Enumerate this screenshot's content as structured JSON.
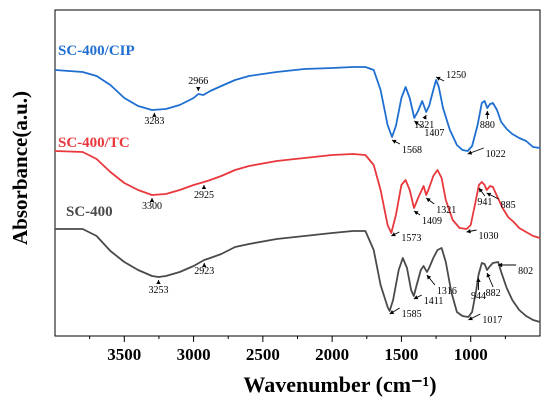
{
  "chart_data": {
    "type": "line",
    "xlabel": "Wavenumber (cm⁻¹)",
    "ylabel": "Absorbance(a.u.)",
    "xlim": [
      4000,
      500
    ],
    "x_reversed": true,
    "x_ticks": [
      3500,
      3000,
      2500,
      2000,
      1500,
      1000
    ],
    "y_ticks": "none",
    "grid": false,
    "series": [
      {
        "name": "SC-400/CIP",
        "color": "#1f6fd1",
        "points": [
          [
            4000,
            70
          ],
          [
            3800,
            72
          ],
          [
            3700,
            76
          ],
          [
            3600,
            85
          ],
          [
            3500,
            98
          ],
          [
            3400,
            106
          ],
          [
            3300,
            110
          ],
          [
            3200,
            109
          ],
          [
            3100,
            105
          ],
          [
            3000,
            98
          ],
          [
            2966,
            94
          ],
          [
            2930,
            95
          ],
          [
            2880,
            91
          ],
          [
            2800,
            86
          ],
          [
            2700,
            80
          ],
          [
            2600,
            76
          ],
          [
            2400,
            72
          ],
          [
            2200,
            69
          ],
          [
            2000,
            68
          ],
          [
            1850,
            67
          ],
          [
            1760,
            67
          ],
          [
            1700,
            70
          ],
          [
            1650,
            90
          ],
          [
            1600,
            125
          ],
          [
            1568,
            137
          ],
          [
            1540,
            126
          ],
          [
            1500,
            98
          ],
          [
            1470,
            87
          ],
          [
            1440,
            98
          ],
          [
            1407,
            118
          ],
          [
            1380,
            111
          ],
          [
            1350,
            101
          ],
          [
            1321,
            112
          ],
          [
            1300,
            106
          ],
          [
            1270,
            90
          ],
          [
            1250,
            80
          ],
          [
            1230,
            87
          ],
          [
            1200,
            108
          ],
          [
            1150,
            130
          ],
          [
            1100,
            145
          ],
          [
            1060,
            150
          ],
          [
            1022,
            151
          ],
          [
            990,
            146
          ],
          [
            950,
            125
          ],
          [
            920,
            103
          ],
          [
            900,
            101
          ],
          [
            880,
            108
          ],
          [
            860,
            104
          ],
          [
            840,
            103
          ],
          [
            810,
            110
          ],
          [
            780,
            122
          ],
          [
            740,
            129
          ],
          [
            700,
            134
          ],
          [
            650,
            138
          ],
          [
            600,
            141
          ],
          [
            550,
            147
          ],
          [
            500,
            148
          ]
        ]
      },
      {
        "name": "SC-400/TC",
        "color": "#e8383d",
        "points": [
          [
            4000,
            151
          ],
          [
            3800,
            152
          ],
          [
            3700,
            159
          ],
          [
            3600,
            172
          ],
          [
            3500,
            183
          ],
          [
            3400,
            190
          ],
          [
            3300,
            195
          ],
          [
            3200,
            194
          ],
          [
            3100,
            190
          ],
          [
            3000,
            185
          ],
          [
            2925,
            182
          ],
          [
            2880,
            180
          ],
          [
            2800,
            176
          ],
          [
            2700,
            170
          ],
          [
            2600,
            166
          ],
          [
            2400,
            161
          ],
          [
            2200,
            158
          ],
          [
            2000,
            155
          ],
          [
            1850,
            154
          ],
          [
            1760,
            155
          ],
          [
            1700,
            165
          ],
          [
            1650,
            190
          ],
          [
            1600,
            225
          ],
          [
            1573,
            233
          ],
          [
            1540,
            215
          ],
          [
            1500,
            185
          ],
          [
            1470,
            180
          ],
          [
            1440,
            190
          ],
          [
            1409,
            208
          ],
          [
            1380,
            198
          ],
          [
            1340,
            186
          ],
          [
            1321,
            195
          ],
          [
            1300,
            188
          ],
          [
            1270,
            176
          ],
          [
            1240,
            170
          ],
          [
            1210,
            178
          ],
          [
            1180,
            200
          ],
          [
            1130,
            220
          ],
          [
            1080,
            228
          ],
          [
            1030,
            229
          ],
          [
            1000,
            225
          ],
          [
            970,
            205
          ],
          [
            941,
            185
          ],
          [
            920,
            182
          ],
          [
            900,
            185
          ],
          [
            885,
            190
          ],
          [
            860,
            186
          ],
          [
            840,
            187
          ],
          [
            810,
            196
          ],
          [
            770,
            208
          ],
          [
            730,
            217
          ],
          [
            690,
            222
          ],
          [
            650,
            228
          ],
          [
            600,
            232
          ],
          [
            550,
            236
          ],
          [
            500,
            238
          ]
        ]
      },
      {
        "name": "SC-400",
        "color": "#4a4a4a",
        "points": [
          [
            4000,
            229
          ],
          [
            3800,
            229
          ],
          [
            3700,
            236
          ],
          [
            3600,
            251
          ],
          [
            3500,
            262
          ],
          [
            3400,
            270
          ],
          [
            3300,
            276
          ],
          [
            3253,
            277
          ],
          [
            3200,
            276
          ],
          [
            3100,
            272
          ],
          [
            3000,
            266
          ],
          [
            2923,
            260
          ],
          [
            2880,
            258
          ],
          [
            2800,
            254
          ],
          [
            2700,
            247
          ],
          [
            2600,
            244
          ],
          [
            2400,
            239
          ],
          [
            2200,
            236
          ],
          [
            2000,
            233
          ],
          [
            1850,
            231
          ],
          [
            1760,
            231
          ],
          [
            1700,
            250
          ],
          [
            1650,
            285
          ],
          [
            1600,
            307
          ],
          [
            1585,
            311
          ],
          [
            1560,
            300
          ],
          [
            1520,
            270
          ],
          [
            1490,
            258
          ],
          [
            1460,
            268
          ],
          [
            1430,
            290
          ],
          [
            1411,
            296
          ],
          [
            1390,
            285
          ],
          [
            1360,
            270
          ],
          [
            1340,
            266
          ],
          [
            1316,
            272
          ],
          [
            1300,
            268
          ],
          [
            1270,
            258
          ],
          [
            1240,
            250
          ],
          [
            1210,
            248
          ],
          [
            1180,
            262
          ],
          [
            1140,
            292
          ],
          [
            1100,
            312
          ],
          [
            1060,
            316
          ],
          [
            1017,
            317
          ],
          [
            990,
            312
          ],
          [
            960,
            290
          ],
          [
            944,
            275
          ],
          [
            920,
            263
          ],
          [
            900,
            264
          ],
          [
            882,
            270
          ],
          [
            860,
            266
          ],
          [
            840,
            263
          ],
          [
            802,
            262
          ],
          [
            780,
            272
          ],
          [
            740,
            288
          ],
          [
            700,
            300
          ],
          [
            650,
            310
          ],
          [
            600,
            316
          ],
          [
            550,
            320
          ],
          [
            500,
            322
          ]
        ]
      }
    ],
    "annotations": [
      {
        "series": "SC-400/CIP",
        "label": "3283",
        "x": 3283
      },
      {
        "series": "SC-400/CIP",
        "label": "2966",
        "x": 2966
      },
      {
        "series": "SC-400/CIP",
        "label": "1568",
        "x": 1568
      },
      {
        "series": "SC-400/CIP",
        "label": "1407",
        "x": 1407
      },
      {
        "series": "SC-400/CIP",
        "label": "1321",
        "x": 1321
      },
      {
        "series": "SC-400/CIP",
        "label": "1250",
        "x": 1250
      },
      {
        "series": "SC-400/CIP",
        "label": "1022",
        "x": 1022
      },
      {
        "series": "SC-400/CIP",
        "label": "880",
        "x": 880
      },
      {
        "series": "SC-400/TC",
        "label": "3300",
        "x": 3300
      },
      {
        "series": "SC-400/TC",
        "label": "2925",
        "x": 2925
      },
      {
        "series": "SC-400/TC",
        "label": "1573",
        "x": 1573
      },
      {
        "series": "SC-400/TC",
        "label": "1409",
        "x": 1409
      },
      {
        "series": "SC-400/TC",
        "label": "1321",
        "x": 1321
      },
      {
        "series": "SC-400/TC",
        "label": "1030",
        "x": 1030
      },
      {
        "series": "SC-400/TC",
        "label": "941",
        "x": 941
      },
      {
        "series": "SC-400/TC",
        "label": "885",
        "x": 885
      },
      {
        "series": "SC-400",
        "label": "3253",
        "x": 3253
      },
      {
        "series": "SC-400",
        "label": "2923",
        "x": 2923
      },
      {
        "series": "SC-400",
        "label": "1585",
        "x": 1585
      },
      {
        "series": "SC-400",
        "label": "1411",
        "x": 1411
      },
      {
        "series": "SC-400",
        "label": "1316",
        "x": 1316
      },
      {
        "series": "SC-400",
        "label": "1017",
        "x": 1017
      },
      {
        "series": "SC-400",
        "label": "944",
        "x": 944
      },
      {
        "series": "SC-400",
        "label": "882",
        "x": 882
      },
      {
        "series": "SC-400",
        "label": "802",
        "x": 802
      }
    ]
  }
}
